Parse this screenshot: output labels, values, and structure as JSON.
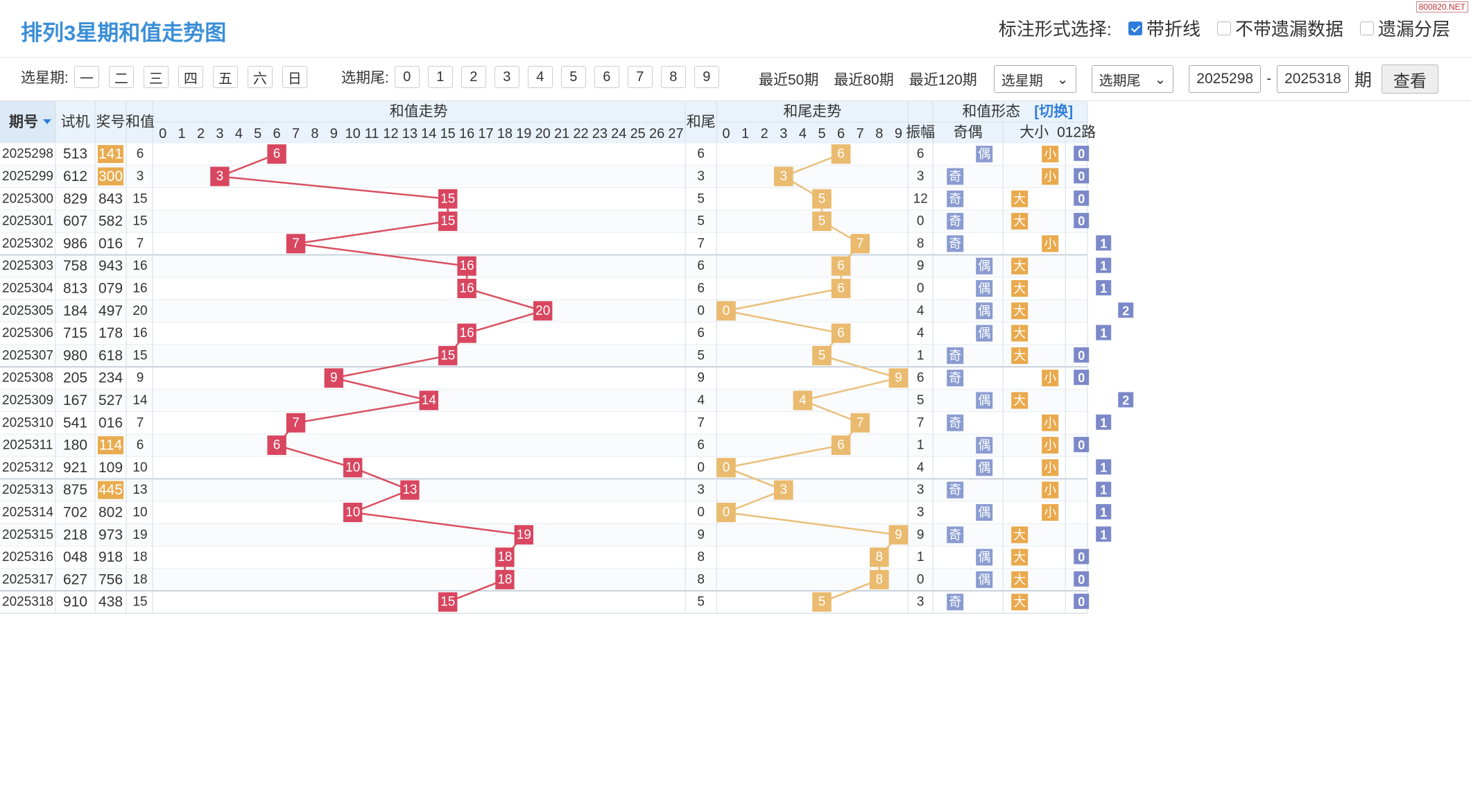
{
  "title": "排列3星期和值走势图",
  "watermark": "800820.NET",
  "mode": {
    "label": "标注形式选择:",
    "options": [
      {
        "label": "带折线",
        "checked": true
      },
      {
        "label": "不带遗漏数据",
        "checked": false
      },
      {
        "label": "遗漏分层",
        "checked": false
      }
    ]
  },
  "filters": {
    "weekday_label": "选星期:",
    "weekdays": [
      "一",
      "二",
      "三",
      "四",
      "五",
      "六",
      "日"
    ],
    "tail_label": "选期尾:",
    "tails": [
      "0",
      "1",
      "2",
      "3",
      "4",
      "5",
      "6",
      "7",
      "8",
      "9"
    ],
    "recent": [
      "最近50期",
      "最近80期",
      "最近120期"
    ],
    "select_week": "选星期",
    "select_tail": "选期尾",
    "start_issue": "2025298",
    "dash": "-",
    "end_issue": "2025318",
    "issue_suffix": "期",
    "query_button": "查看"
  },
  "headers": {
    "issue": "期号",
    "trial": "试机",
    "prize": "奖号",
    "sum": "和值",
    "sum_trend": "和值走势",
    "tail": "和尾",
    "tail_trend": "和尾走势",
    "form": "和值形态",
    "form_switch": "[切换]",
    "amplitude": "振幅",
    "parity": "奇偶",
    "size": "大小",
    "mod": "012路"
  },
  "colors": {
    "sum_cell": "#d9465f",
    "tail_cell": "#eaba6e",
    "odd_even": "#8a9cd1",
    "size": "#e9a94c",
    "mod": "#7b89c9",
    "prize_highlight": "#e9ab4f",
    "line": "#d8505f"
  },
  "chart_data": {
    "type": "table",
    "sum_axis": [
      0,
      1,
      2,
      3,
      4,
      5,
      6,
      7,
      8,
      9,
      10,
      11,
      12,
      13,
      14,
      15,
      16,
      17,
      18,
      19,
      20,
      21,
      22,
      23,
      24,
      25,
      26,
      27
    ],
    "tail_axis": [
      0,
      1,
      2,
      3,
      4,
      5,
      6,
      7,
      8,
      9
    ],
    "rows": [
      {
        "issue": "2025298",
        "trial": "513",
        "prize": "141",
        "prize_highlight": true,
        "sum": 6,
        "tail": 6,
        "amplitude": 6,
        "parity": "偶",
        "size": "小",
        "mod": 0
      },
      {
        "issue": "2025299",
        "trial": "612",
        "prize": "300",
        "prize_highlight": true,
        "sum": 3,
        "tail": 3,
        "amplitude": 3,
        "parity": "奇",
        "size": "小",
        "mod": 0
      },
      {
        "issue": "2025300",
        "trial": "829",
        "prize": "843",
        "prize_highlight": false,
        "sum": 15,
        "tail": 5,
        "amplitude": 12,
        "parity": "奇",
        "size": "大",
        "mod": 0
      },
      {
        "issue": "2025301",
        "trial": "607",
        "prize": "582",
        "prize_highlight": false,
        "sum": 15,
        "tail": 5,
        "amplitude": 0,
        "parity": "奇",
        "size": "大",
        "mod": 0
      },
      {
        "issue": "2025302",
        "trial": "986",
        "prize": "016",
        "prize_highlight": false,
        "sum": 7,
        "tail": 7,
        "amplitude": 8,
        "parity": "奇",
        "size": "小",
        "mod": 1
      },
      {
        "issue": "2025303",
        "trial": "758",
        "prize": "943",
        "prize_highlight": false,
        "sum": 16,
        "tail": 6,
        "amplitude": 9,
        "parity": "偶",
        "size": "大",
        "mod": 1
      },
      {
        "issue": "2025304",
        "trial": "813",
        "prize": "079",
        "prize_highlight": false,
        "sum": 16,
        "tail": 6,
        "amplitude": 0,
        "parity": "偶",
        "size": "大",
        "mod": 1
      },
      {
        "issue": "2025305",
        "trial": "184",
        "prize": "497",
        "prize_highlight": false,
        "sum": 20,
        "tail": 0,
        "amplitude": 4,
        "parity": "偶",
        "size": "大",
        "mod": 2
      },
      {
        "issue": "2025306",
        "trial": "715",
        "prize": "178",
        "prize_highlight": false,
        "sum": 16,
        "tail": 6,
        "amplitude": 4,
        "parity": "偶",
        "size": "大",
        "mod": 1
      },
      {
        "issue": "2025307",
        "trial": "980",
        "prize": "618",
        "prize_highlight": false,
        "sum": 15,
        "tail": 5,
        "amplitude": 1,
        "parity": "奇",
        "size": "大",
        "mod": 0
      },
      {
        "issue": "2025308",
        "trial": "205",
        "prize": "234",
        "prize_highlight": false,
        "sum": 9,
        "tail": 9,
        "amplitude": 6,
        "parity": "奇",
        "size": "小",
        "mod": 0
      },
      {
        "issue": "2025309",
        "trial": "167",
        "prize": "527",
        "prize_highlight": false,
        "sum": 14,
        "tail": 4,
        "amplitude": 5,
        "parity": "偶",
        "size": "大",
        "mod": 2
      },
      {
        "issue": "2025310",
        "trial": "541",
        "prize": "016",
        "prize_highlight": false,
        "sum": 7,
        "tail": 7,
        "amplitude": 7,
        "parity": "奇",
        "size": "小",
        "mod": 1
      },
      {
        "issue": "2025311",
        "trial": "180",
        "prize": "114",
        "prize_highlight": true,
        "sum": 6,
        "tail": 6,
        "amplitude": 1,
        "parity": "偶",
        "size": "小",
        "mod": 0
      },
      {
        "issue": "2025312",
        "trial": "921",
        "prize": "109",
        "prize_highlight": false,
        "sum": 10,
        "tail": 0,
        "amplitude": 4,
        "parity": "偶",
        "size": "小",
        "mod": 1
      },
      {
        "issue": "2025313",
        "trial": "875",
        "prize": "445",
        "prize_highlight": true,
        "sum": 13,
        "tail": 3,
        "amplitude": 3,
        "parity": "奇",
        "size": "小",
        "mod": 1
      },
      {
        "issue": "2025314",
        "trial": "702",
        "prize": "802",
        "prize_highlight": false,
        "sum": 10,
        "tail": 0,
        "amplitude": 3,
        "parity": "偶",
        "size": "小",
        "mod": 1
      },
      {
        "issue": "2025315",
        "trial": "218",
        "prize": "973",
        "prize_highlight": false,
        "sum": 19,
        "tail": 9,
        "amplitude": 9,
        "parity": "奇",
        "size": "大",
        "mod": 1
      },
      {
        "issue": "2025316",
        "trial": "048",
        "prize": "918",
        "prize_highlight": false,
        "sum": 18,
        "tail": 8,
        "amplitude": 1,
        "parity": "偶",
        "size": "大",
        "mod": 0
      },
      {
        "issue": "2025317",
        "trial": "627",
        "prize": "756",
        "prize_highlight": false,
        "sum": 18,
        "tail": 8,
        "amplitude": 0,
        "parity": "偶",
        "size": "大",
        "mod": 0
      },
      {
        "issue": "2025318",
        "trial": "910",
        "prize": "438",
        "prize_highlight": false,
        "sum": 15,
        "tail": 5,
        "amplitude": 3,
        "parity": "奇",
        "size": "大",
        "mod": 0
      }
    ]
  }
}
